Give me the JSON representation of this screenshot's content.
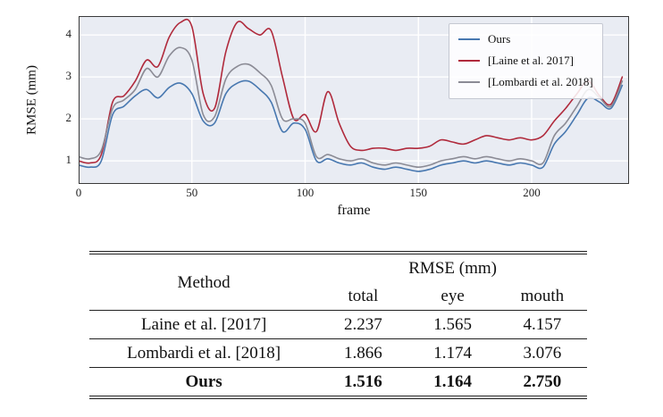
{
  "figure": {
    "ylabel": "RMSE (mm)",
    "xlabel": "frame",
    "legend": [
      {
        "label": "Ours",
        "color": "#4878b0"
      },
      {
        "label": "[Laine et al. 2017]",
        "color": "#b02a3c"
      },
      {
        "label": "[Lombardi et al. 2018]",
        "color": "#8b8b95"
      }
    ]
  },
  "chart_data": {
    "type": "line",
    "title": "",
    "xlabel": "frame",
    "ylabel": "RMSE (mm)",
    "xlim": [
      0,
      243
    ],
    "ylim": [
      0.45,
      4.45
    ],
    "xticks": [
      0,
      50,
      100,
      150,
      200
    ],
    "yticks": [
      1,
      2,
      3,
      4
    ],
    "grid": true,
    "legend_position": "upper right",
    "x": [
      0,
      5,
      10,
      15,
      20,
      25,
      30,
      35,
      40,
      45,
      50,
      55,
      60,
      65,
      70,
      75,
      80,
      85,
      90,
      95,
      100,
      105,
      110,
      115,
      120,
      125,
      130,
      135,
      140,
      145,
      150,
      155,
      160,
      165,
      170,
      175,
      180,
      185,
      190,
      195,
      200,
      205,
      210,
      215,
      220,
      225,
      230,
      235,
      240
    ],
    "series": [
      {
        "name": "Ours",
        "color": "#4878b0",
        "values": [
          0.9,
          0.85,
          1.0,
          2.1,
          2.3,
          2.55,
          2.7,
          2.5,
          2.75,
          2.85,
          2.6,
          1.95,
          1.9,
          2.6,
          2.85,
          2.9,
          2.7,
          2.4,
          1.7,
          1.9,
          1.75,
          1.0,
          1.05,
          0.95,
          0.9,
          0.95,
          0.85,
          0.8,
          0.85,
          0.8,
          0.75,
          0.8,
          0.9,
          0.95,
          1.0,
          0.95,
          1.0,
          0.95,
          0.9,
          0.95,
          0.9,
          0.85,
          1.4,
          1.7,
          2.1,
          2.5,
          2.4,
          2.25,
          2.8
        ]
      },
      {
        "name": "[Laine et al. 2017]",
        "color": "#b02a3c",
        "values": [
          1.0,
          0.95,
          1.15,
          2.4,
          2.55,
          2.9,
          3.4,
          3.25,
          3.95,
          4.3,
          4.2,
          2.6,
          2.25,
          3.6,
          4.3,
          4.15,
          4.0,
          4.1,
          3.0,
          2.0,
          2.1,
          1.7,
          2.65,
          1.9,
          1.35,
          1.25,
          1.3,
          1.3,
          1.25,
          1.3,
          1.3,
          1.35,
          1.5,
          1.45,
          1.4,
          1.5,
          1.6,
          1.55,
          1.5,
          1.55,
          1.5,
          1.6,
          1.95,
          2.25,
          2.6,
          2.9,
          2.55,
          2.35,
          3.0
        ]
      },
      {
        "name": "[Lombardi et al. 2018]",
        "color": "#8b8b95",
        "values": [
          1.1,
          1.05,
          1.25,
          2.25,
          2.45,
          2.7,
          3.2,
          3.0,
          3.5,
          3.7,
          3.4,
          2.1,
          2.05,
          2.95,
          3.25,
          3.3,
          3.1,
          2.8,
          2.0,
          2.0,
          1.9,
          1.1,
          1.15,
          1.05,
          1.0,
          1.05,
          0.95,
          0.9,
          0.95,
          0.9,
          0.85,
          0.9,
          1.0,
          1.05,
          1.1,
          1.05,
          1.1,
          1.05,
          1.0,
          1.05,
          1.0,
          0.95,
          1.6,
          1.9,
          2.3,
          2.7,
          2.5,
          2.3,
          2.9
        ]
      }
    ]
  },
  "table": {
    "header": {
      "method": "Method",
      "group": "RMSE (mm)",
      "cols": [
        "total",
        "eye",
        "mouth"
      ]
    },
    "rows": [
      {
        "method": "Laine et al. [2017]",
        "total": "2.237",
        "eye": "1.565",
        "mouth": "4.157",
        "bold": false
      },
      {
        "method": "Lombardi et al. [2018]",
        "total": "1.866",
        "eye": "1.174",
        "mouth": "3.076",
        "bold": false
      },
      {
        "method": "Ours",
        "total": "1.516",
        "eye": "1.164",
        "mouth": "2.750",
        "bold": true
      }
    ]
  }
}
